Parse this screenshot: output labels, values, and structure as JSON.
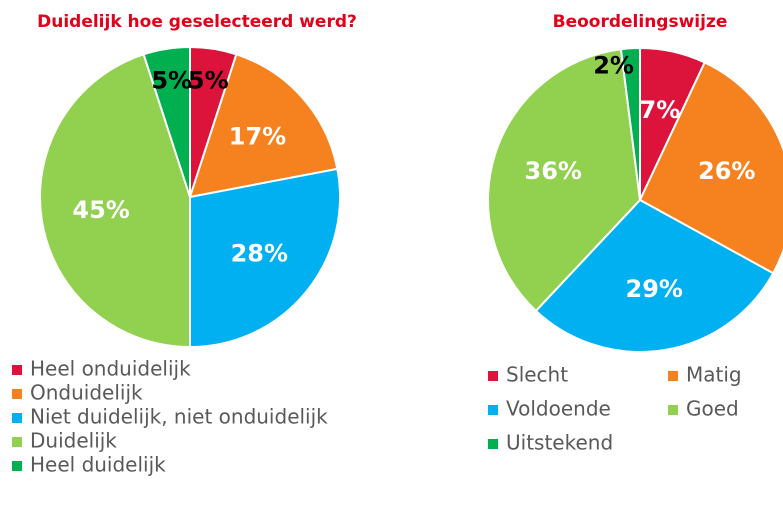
{
  "chart_data": [
    {
      "type": "pie",
      "title": "Duidelijk hoe geselecteerd werd?",
      "categories": [
        "Heel onduidelijk",
        "Onduidelijk",
        "Niet duidelijk, niet onduidelijk",
        "Duidelijk",
        "Heel duidelijk"
      ],
      "values": [
        5,
        17,
        28,
        45,
        5
      ],
      "value_labels": [
        "5%",
        "17%",
        "28%",
        "45%",
        "5%"
      ],
      "colors": [
        "#dc143c",
        "#f5821f",
        "#00b0f0",
        "#92d050",
        "#00b050"
      ]
    },
    {
      "type": "pie",
      "title": "Beoordelingswijze",
      "categories": [
        "Slecht",
        "Matig",
        "Voldoende",
        "Goed",
        "Uitstekend"
      ],
      "values": [
        7,
        26,
        29,
        36,
        2
      ],
      "value_labels": [
        "7%",
        "26%",
        "29%",
        "36%",
        "2%"
      ],
      "colors": [
        "#dc143c",
        "#f5821f",
        "#00b0f0",
        "#92d050",
        "#00b050"
      ]
    }
  ]
}
